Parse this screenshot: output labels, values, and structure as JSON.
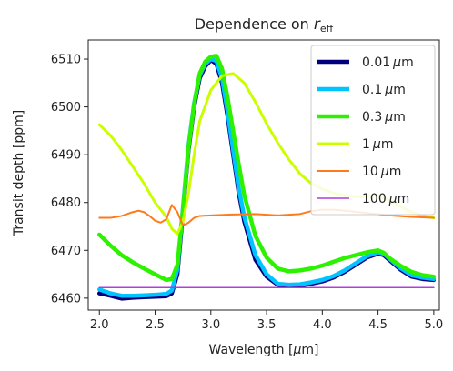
{
  "chart_data": {
    "type": "line",
    "title": "Dependence on ",
    "title_var": "r",
    "title_sub": "eff",
    "xlabel_pre": "Wavelength [",
    "xlabel_mu": "μ",
    "xlabel_post": "m]",
    "ylabel": "Transit depth [ppm]",
    "xlim": [
      1.9,
      5.05
    ],
    "ylim": [
      6457.5,
      6514.0
    ],
    "xticks": [
      "2.0",
      "2.5",
      "3.0",
      "3.5",
      "4.0",
      "4.5",
      "5.0"
    ],
    "yticks": [
      "6460",
      "6470",
      "6480",
      "6490",
      "6500",
      "6510"
    ],
    "legend_position": "top-right",
    "series": [
      {
        "name": "0.01",
        "unit": "μm",
        "color": "#00007f",
        "width": 4.5,
        "x": [
          2.0,
          2.1,
          2.2,
          2.3,
          2.4,
          2.5,
          2.6,
          2.65,
          2.7,
          2.75,
          2.8,
          2.85,
          2.9,
          2.95,
          3.0,
          3.05,
          3.1,
          3.15,
          3.2,
          3.25,
          3.3,
          3.4,
          3.5,
          3.6,
          3.7,
          3.8,
          3.9,
          4.0,
          4.1,
          4.2,
          4.3,
          4.4,
          4.5,
          4.55,
          4.6,
          4.7,
          4.8,
          4.9,
          5.0
        ],
        "y": [
          6461.0,
          6460.5,
          6459.9,
          6460.1,
          6460.2,
          6460.3,
          6460.4,
          6461.0,
          6465.0,
          6478.0,
          6491.0,
          6500.0,
          6506.0,
          6508.5,
          6509.8,
          6509.0,
          6505.0,
          6498.0,
          6490.0,
          6482.0,
          6476.0,
          6468.0,
          6464.5,
          6462.8,
          6462.5,
          6462.6,
          6463.0,
          6463.5,
          6464.3,
          6465.5,
          6467.0,
          6468.5,
          6469.3,
          6469.0,
          6468.0,
          6466.0,
          6464.5,
          6464.0,
          6463.8
        ]
      },
      {
        "name": "0.1",
        "unit": "μm",
        "color": "#00c4ff",
        "width": 4.5,
        "x": [
          2.0,
          2.1,
          2.2,
          2.3,
          2.4,
          2.5,
          2.6,
          2.65,
          2.7,
          2.75,
          2.8,
          2.85,
          2.9,
          2.95,
          3.0,
          3.05,
          3.1,
          3.15,
          3.2,
          3.25,
          3.3,
          3.4,
          3.5,
          3.6,
          3.7,
          3.8,
          3.9,
          4.0,
          4.1,
          4.2,
          4.3,
          4.4,
          4.5,
          4.55,
          4.6,
          4.7,
          4.8,
          4.9,
          5.0
        ],
        "y": [
          6461.8,
          6461.0,
          6460.5,
          6460.5,
          6460.6,
          6460.7,
          6460.9,
          6461.6,
          6466.0,
          6479.0,
          6492.0,
          6500.8,
          6506.6,
          6509.0,
          6510.0,
          6509.6,
          6506.0,
          6499.0,
          6491.0,
          6483.0,
          6477.0,
          6469.0,
          6465.0,
          6463.0,
          6462.8,
          6462.9,
          6463.3,
          6463.8,
          6464.6,
          6465.8,
          6467.3,
          6468.8,
          6469.6,
          6469.3,
          6468.3,
          6466.3,
          6464.8,
          6464.3,
          6464.0
        ]
      },
      {
        "name": "0.3",
        "unit": "μm",
        "color": "#2cf200",
        "width": 4.5,
        "x": [
          2.0,
          2.1,
          2.2,
          2.3,
          2.4,
          2.5,
          2.6,
          2.65,
          2.7,
          2.75,
          2.8,
          2.85,
          2.9,
          2.95,
          3.0,
          3.05,
          3.1,
          3.15,
          3.2,
          3.25,
          3.3,
          3.4,
          3.5,
          3.6,
          3.7,
          3.8,
          3.9,
          4.0,
          4.1,
          4.2,
          4.3,
          4.4,
          4.5,
          4.55,
          4.6,
          4.7,
          4.8,
          4.9,
          5.0
        ],
        "y": [
          6473.3,
          6471.0,
          6469.0,
          6467.5,
          6466.2,
          6465.0,
          6463.8,
          6464.0,
          6467.0,
          6478.5,
          6491.5,
          6500.5,
          6507.0,
          6509.5,
          6510.5,
          6510.7,
          6508.0,
          6502.0,
          6495.0,
          6488.0,
          6481.5,
          6473.0,
          6468.5,
          6466.2,
          6465.6,
          6465.8,
          6466.2,
          6466.8,
          6467.6,
          6468.4,
          6469.0,
          6469.6,
          6470.0,
          6469.5,
          6468.4,
          6466.8,
          6465.5,
          6464.8,
          6464.5
        ]
      },
      {
        "name": "1",
        "unit": "μm",
        "color": "#cbff00",
        "width": 3,
        "x": [
          2.0,
          2.1,
          2.2,
          2.3,
          2.4,
          2.5,
          2.6,
          2.65,
          2.7,
          2.75,
          2.8,
          2.85,
          2.9,
          3.0,
          3.1,
          3.2,
          3.3,
          3.4,
          3.5,
          3.6,
          3.7,
          3.8,
          3.9,
          4.0,
          4.1,
          4.2,
          4.3,
          4.4,
          4.5,
          4.6,
          4.7,
          4.8,
          4.9,
          5.0
        ],
        "y": [
          6496.3,
          6494.0,
          6491.0,
          6487.5,
          6484.0,
          6480.0,
          6477.0,
          6474.5,
          6473.5,
          6476.0,
          6482.0,
          6490.0,
          6497.0,
          6503.5,
          6506.5,
          6507.0,
          6505.0,
          6501.0,
          6496.5,
          6492.5,
          6489.0,
          6486.0,
          6484.0,
          6482.8,
          6482.0,
          6481.5,
          6481.2,
          6481.3,
          6481.5,
          6480.5,
          6479.2,
          6478.0,
          6477.2,
          6476.8
        ]
      },
      {
        "name": "10",
        "unit": "μm",
        "color": "#ff7a1a",
        "width": 2,
        "x": [
          2.0,
          2.1,
          2.2,
          2.3,
          2.35,
          2.4,
          2.45,
          2.5,
          2.55,
          2.6,
          2.65,
          2.7,
          2.75,
          2.8,
          2.85,
          2.9,
          3.0,
          3.2,
          3.4,
          3.6,
          3.8,
          3.9,
          4.0,
          4.1,
          4.2,
          4.4,
          4.6,
          4.8,
          5.0
        ],
        "y": [
          6476.8,
          6476.8,
          6477.2,
          6478.0,
          6478.3,
          6478.0,
          6477.2,
          6476.2,
          6475.8,
          6476.5,
          6479.5,
          6478.0,
          6475.2,
          6475.8,
          6476.8,
          6477.2,
          6477.3,
          6477.5,
          6477.6,
          6477.3,
          6477.6,
          6478.2,
          6478.5,
          6478.5,
          6478.3,
          6477.8,
          6477.3,
          6477.0,
          6476.8
        ]
      },
      {
        "name": "100",
        "unit": "μm",
        "color": "#b43cdc",
        "width": 1.5,
        "x": [
          2.0,
          5.0
        ],
        "y": [
          6462.2,
          6462.2
        ]
      }
    ]
  }
}
